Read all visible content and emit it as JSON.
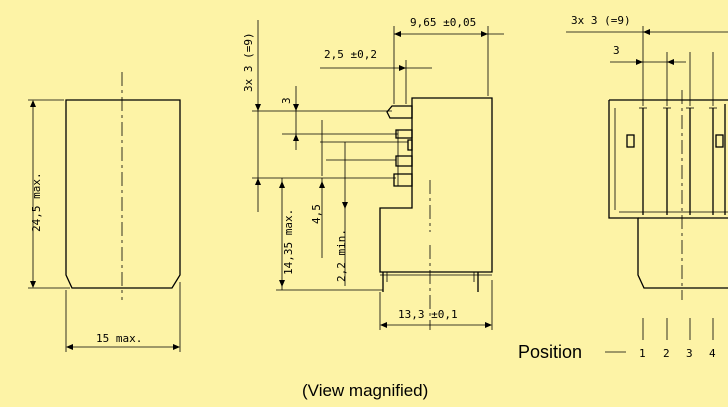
{
  "diagram": {
    "side_view": {
      "height_label": "24,5 max.",
      "width_label": "15 max."
    },
    "front_view": {
      "pitch_total_label": "3x 3 (=9)",
      "overall_label": "9,65 ±0,05",
      "pin_offset_label": "2,5 ±0,2",
      "pitch_label": "3",
      "body_height_label": "14,35 max.",
      "pin_length_label": "4,5",
      "min_label": "2,2 min.",
      "base_width_label": "13,3 ±0,1"
    },
    "end_view": {
      "pitch_total_label": "3x 3 (=9)",
      "pitch_label": "3",
      "position_label": "Position",
      "positions": [
        "1",
        "2",
        "3",
        "4"
      ]
    },
    "caption": "(View magnified)"
  }
}
